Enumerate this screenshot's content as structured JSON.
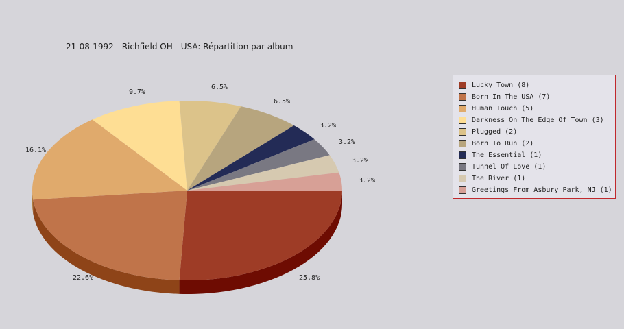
{
  "chart_data": {
    "type": "pie",
    "title": "21-08-1992 - Richfield OH - USA:  Répartition par album",
    "legend_position": "right",
    "slices": [
      {
        "label": "Lucky Town (8)",
        "value": 8,
        "percent_label": "25.8%",
        "color": "#9e3c26",
        "side_color": "#6e0c02"
      },
      {
        "label": "Born In The USA (7)",
        "value": 7,
        "percent_label": "22.6%",
        "color": "#c0744a",
        "side_color": "#8e4418"
      },
      {
        "label": "Human Touch (5)",
        "value": 5,
        "percent_label": "16.1%",
        "color": "#e0aa6c",
        "side_color": "#b07a3c"
      },
      {
        "label": "Darkness On The Edge Of Town (3)",
        "value": 3,
        "percent_label": "9.7%",
        "color": "#fede94",
        "side_color": "#ceae64"
      },
      {
        "label": "Plugged (2)",
        "value": 2,
        "percent_label": "6.5%",
        "color": "#dcc38a",
        "side_color": "#ac935a"
      },
      {
        "label": "Born To Run (2)",
        "value": 2,
        "percent_label": "6.5%",
        "color": "#b7a57e",
        "side_color": "#87754e"
      },
      {
        "label": "The Essential (1)",
        "value": 1,
        "percent_label": "3.2%",
        "color": "#232b56",
        "side_color": "#030b26"
      },
      {
        "label": "Tunnel Of Love (1)",
        "value": 1,
        "percent_label": "3.2%",
        "color": "#797882",
        "side_color": "#494852"
      },
      {
        "label": "The River (1)",
        "value": 1,
        "percent_label": "3.2%",
        "color": "#d6c9b0",
        "side_color": "#a69980"
      },
      {
        "label": "Greetings From Asbury Park, NJ (1)",
        "value": 1,
        "percent_label": "3.2%",
        "color": "#d7a096",
        "side_color": "#a77066"
      }
    ]
  }
}
